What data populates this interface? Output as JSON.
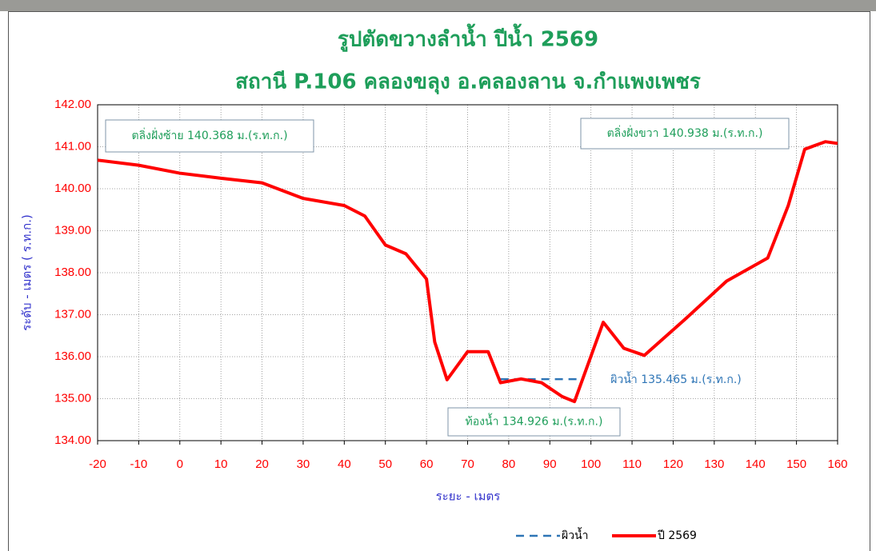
{
  "chart_data": {
    "type": "line",
    "title": "รูปตัดขวางลำน้ำ  ปีน้ำ 2569",
    "subtitle": "สถานี P.106  คลองขลุง อ.คลองลาน จ.กำแพงเพชร",
    "x_label": "ระยะ - เมตร",
    "y_label": "ระดับ - เมตร ( ร.ท.ก.)",
    "xlim": [
      -20,
      160
    ],
    "xticks": [
      -20,
      -10,
      0,
      10,
      20,
      30,
      40,
      50,
      60,
      70,
      80,
      90,
      100,
      110,
      120,
      130,
      140,
      150,
      160
    ],
    "ylim": [
      134,
      142
    ],
    "yticks": [
      {
        "value": 134,
        "label": "134.00"
      },
      {
        "value": 135,
        "label": "135.00"
      },
      {
        "value": 136,
        "label": "136.00"
      },
      {
        "value": 137,
        "label": "137.00"
      },
      {
        "value": 138,
        "label": "138.00"
      },
      {
        "value": 139,
        "label": "139.00"
      },
      {
        "value": 140,
        "label": "140.00"
      },
      {
        "value": 141,
        "label": "141.00"
      },
      {
        "value": 142,
        "label": "142.00"
      }
    ],
    "grid": true,
    "legend": "bottom",
    "series": [
      {
        "name": "ผิวน้ำ",
        "color": "#2e75b6",
        "dashed": true,
        "x": [
          78,
          98
        ],
        "values": [
          135.465,
          135.465
        ]
      },
      {
        "name": "ปี 2569",
        "color": "#ff0000",
        "dashed": false,
        "x": [
          -20,
          -10,
          0,
          10,
          20,
          30,
          40,
          45,
          50,
          55,
          60,
          62,
          65,
          70,
          75,
          78,
          83,
          88,
          93,
          96,
          103,
          108,
          113,
          123,
          133,
          143,
          148,
          152,
          157,
          160
        ],
        "values": [
          140.68,
          140.56,
          140.37,
          140.25,
          140.14,
          139.77,
          139.6,
          139.35,
          138.66,
          138.45,
          137.85,
          136.35,
          135.45,
          136.12,
          136.12,
          135.38,
          135.47,
          135.38,
          135.05,
          134.93,
          136.82,
          136.2,
          136.03,
          136.9,
          137.8,
          138.35,
          139.6,
          140.94,
          141.12,
          141.08
        ]
      }
    ],
    "annotations": [
      "ตลิ่งฝั่งซ้าย 140.368 ม.(ร.ท.ก.)",
      "ตลิ่งฝั่งขวา 140.938 ม.(ร.ท.ก.)",
      "ผิวน้ำ  135.465 ม.(ร.ท.ก.)",
      "ท้องน้ำ 134.926 ม.(ร.ท.ก.)"
    ]
  }
}
